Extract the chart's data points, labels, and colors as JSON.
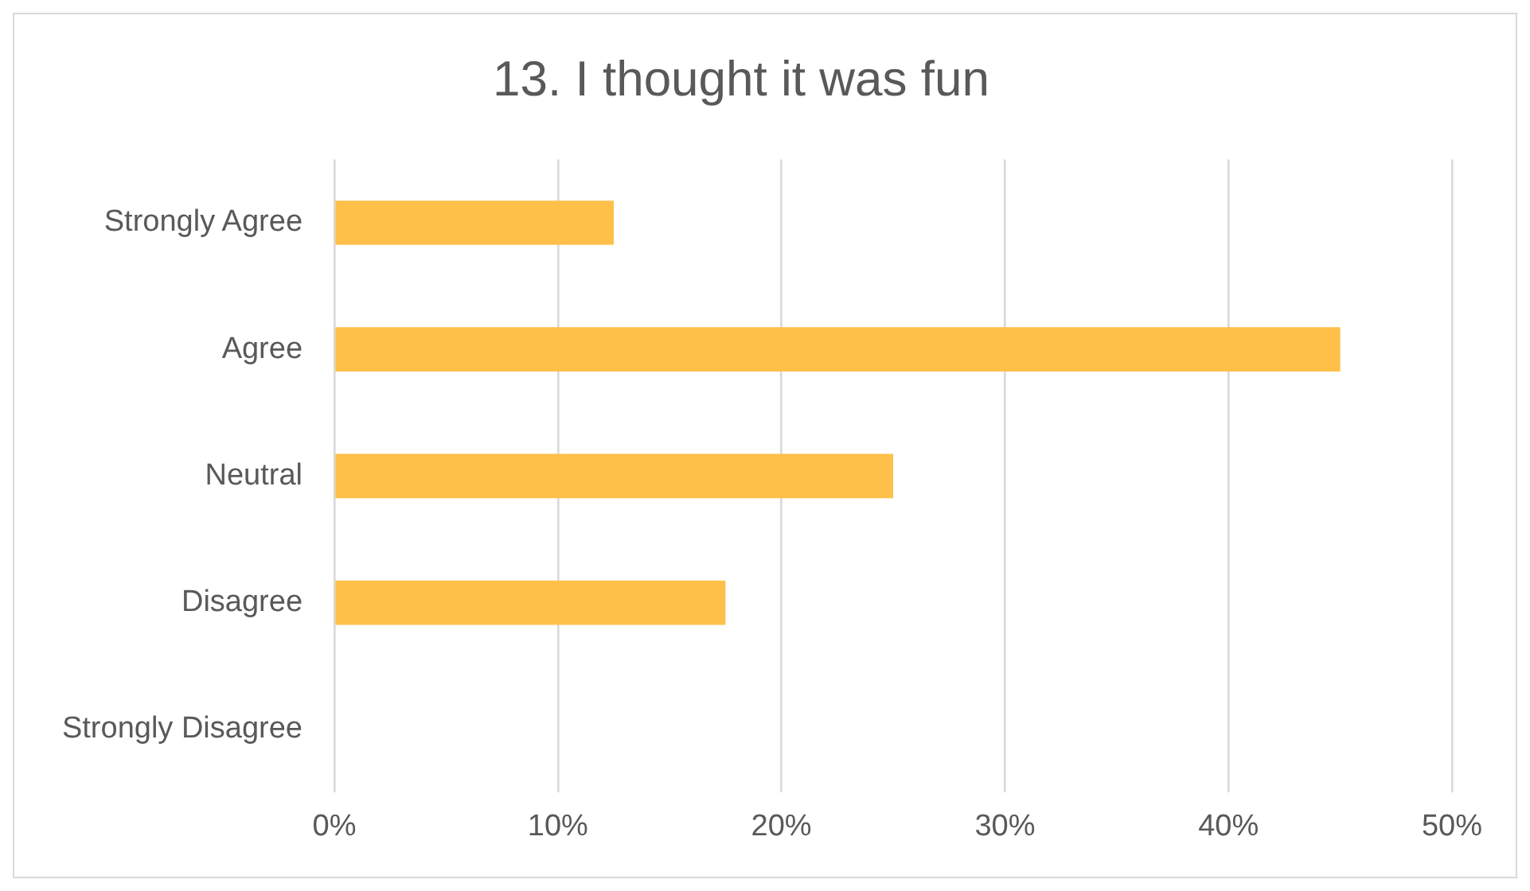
{
  "chart_data": {
    "type": "bar",
    "orientation": "horizontal",
    "title": "13. I thought it was fun",
    "categories": [
      "Strongly Agree",
      "Agree",
      "Neutral",
      "Disagree",
      "Strongly Disagree"
    ],
    "values": [
      12.5,
      45,
      25,
      17.5,
      0
    ],
    "color": "#ffc04a",
    "xlim": [
      0,
      50
    ],
    "xticks": [
      {
        "value": 0,
        "label": "0%"
      },
      {
        "value": 10,
        "label": "10%"
      },
      {
        "value": 20,
        "label": "20%"
      },
      {
        "value": 30,
        "label": "30%"
      },
      {
        "value": 40,
        "label": "40%"
      },
      {
        "value": 50,
        "label": "50%"
      }
    ],
    "grid": "x",
    "legend": false
  }
}
